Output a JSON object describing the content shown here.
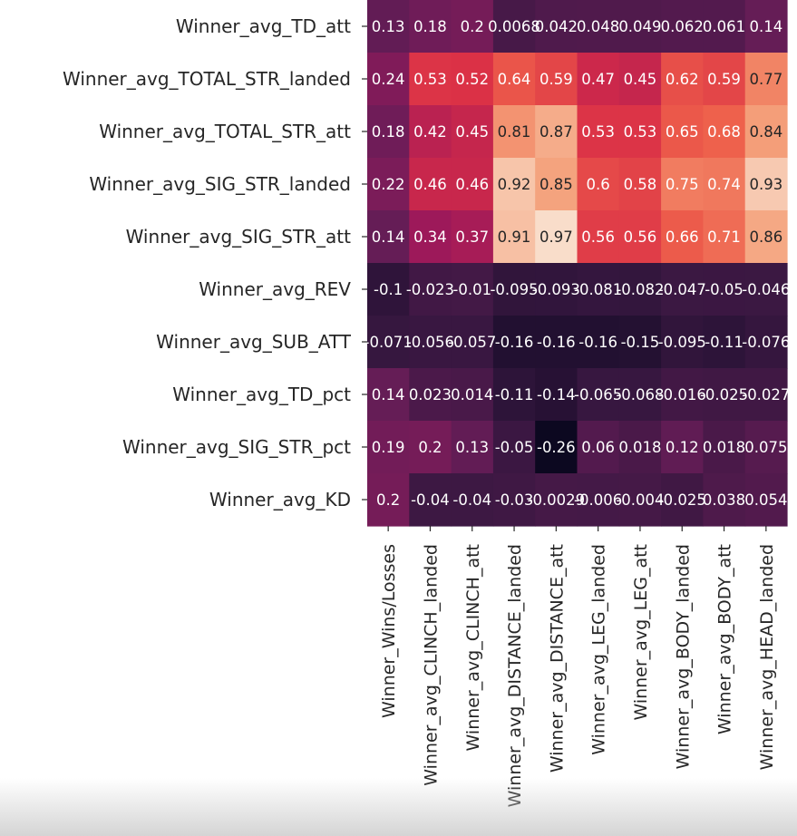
{
  "chart_data": {
    "type": "heatmap",
    "colormap": "rocket",
    "vmin": -0.3,
    "vmax": 1.0,
    "rows": [
      "Winner_avg_TD_att",
      "Winner_avg_TOTAL_STR_landed",
      "Winner_avg_TOTAL_STR_att",
      "Winner_avg_SIG_STR_landed",
      "Winner_avg_SIG_STR_att",
      "Winner_avg_REV",
      "Winner_avg_SUB_ATT",
      "Winner_avg_TD_pct",
      "Winner_avg_SIG_STR_pct",
      "Winner_avg_KD"
    ],
    "columns": [
      "Winner_Wins/Losses",
      "Winner_avg_CLINCH_landed",
      "Winner_avg_CLINCH_att",
      "Winner_avg_DISTANCE_landed",
      "Winner_avg_DISTANCE_att",
      "Winner_avg_LEG_landed",
      "Winner_avg_LEG_att",
      "Winner_avg_BODY_landed",
      "Winner_avg_BODY_att",
      "Winner_avg_HEAD_landed"
    ],
    "values": [
      [
        0.13,
        0.18,
        0.2,
        0.0068,
        0.042,
        0.048,
        0.049,
        0.062,
        0.061,
        0.14
      ],
      [
        0.24,
        0.53,
        0.52,
        0.64,
        0.59,
        0.47,
        0.45,
        0.62,
        0.59,
        0.77
      ],
      [
        0.18,
        0.42,
        0.45,
        0.81,
        0.87,
        0.53,
        0.53,
        0.65,
        0.68,
        0.84
      ],
      [
        0.22,
        0.46,
        0.46,
        0.92,
        0.85,
        0.6,
        0.58,
        0.75,
        0.74,
        0.93
      ],
      [
        0.14,
        0.34,
        0.37,
        0.91,
        0.97,
        0.56,
        0.56,
        0.66,
        0.71,
        0.86
      ],
      [
        -0.1,
        -0.023,
        -0.01,
        -0.095,
        -0.093,
        -0.081,
        -0.082,
        -0.047,
        -0.05,
        -0.046
      ],
      [
        -0.071,
        -0.056,
        -0.057,
        -0.16,
        -0.16,
        -0.16,
        -0.15,
        -0.095,
        -0.11,
        -0.076
      ],
      [
        0.14,
        0.023,
        0.014,
        -0.11,
        -0.14,
        -0.065,
        -0.068,
        -0.016,
        -0.025,
        -0.027
      ],
      [
        0.19,
        0.2,
        0.13,
        -0.05,
        -0.26,
        0.06,
        0.018,
        0.12,
        0.018,
        0.075
      ],
      [
        0.2,
        -0.04,
        -0.04,
        -0.03,
        -0.0029,
        -0.006,
        -0.004,
        -0.025,
        0.038,
        0.054
      ]
    ],
    "title": "",
    "xlabel": "",
    "ylabel": ""
  }
}
